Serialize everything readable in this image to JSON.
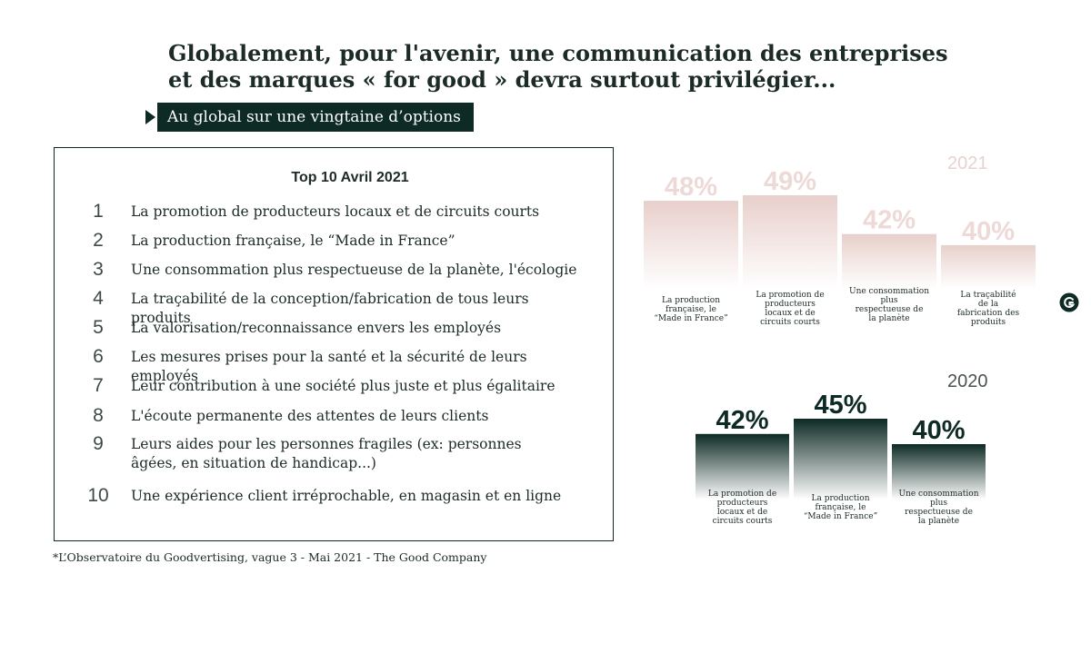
{
  "title": "Globalement, pour l'avenir, une communication des entreprises et des marques « for good » devra surtout privilégier...",
  "subtitle": "Au global sur une vingtaine d’options",
  "top10": {
    "heading": "Top 10 Avril 2021",
    "items": [
      {
        "rank": "1",
        "text": "La promotion de producteurs locaux et de circuits courts"
      },
      {
        "rank": "2",
        "text": "La production française, le “Made in France”"
      },
      {
        "rank": "3",
        "text": "Une consommation plus respectueuse de la planète, l'écologie"
      },
      {
        "rank": "4",
        "text": "La traçabilité de la conception/fabrication de tous leurs produits"
      },
      {
        "rank": "5",
        "text": "La valorisation/reconnaissance envers les employés"
      },
      {
        "rank": "6",
        "text": "Les mesures prises pour la santé et la sécurité de leurs employés"
      },
      {
        "rank": "7",
        "text": "Leur contribution à une société plus juste et plus égalitaire"
      },
      {
        "rank": "8",
        "text": "L'écoute permanente des attentes de leurs clients"
      },
      {
        "rank": "9",
        "text": "Leurs aides pour les personnes fragiles (ex: personnes âgées, en situation de handicap...)"
      },
      {
        "rank": "10",
        "text": "Une expérience client irréprochable, en magasin et en ligne"
      }
    ]
  },
  "footnote": "*L’Observatoire du Goodvertising, vague 3 - Mai 2021 - The Good Company",
  "chart_data": [
    {
      "type": "bar",
      "title": "2021",
      "categories": [
        "La production française, le “Made in France”",
        "La promotion de producteurs locaux et de circuits courts",
        "Une consommation plus respectueuse de la planète",
        "La traçabilité de la fabrication des produits"
      ],
      "values": [
        48,
        49,
        42,
        40
      ],
      "value_labels": [
        "48%",
        "49%",
        "42%",
        "40%"
      ],
      "color": "#e8cfcb",
      "grid": false
    },
    {
      "type": "bar",
      "title": "2020",
      "categories": [
        "La promotion de producteurs locaux et de circuits courts",
        "La production française, le “Made in France”",
        "Une consommation plus respectueuse de la planète"
      ],
      "values": [
        42,
        45,
        40
      ],
      "value_labels": [
        "42%",
        "45%",
        "40%"
      ],
      "color": "#0d2a24",
      "grid": false
    }
  ],
  "icons": {
    "corner": "goodvertising-logo-icon"
  },
  "colors": {
    "dark": "#0d2a24",
    "rose": "#e8cfcb"
  }
}
